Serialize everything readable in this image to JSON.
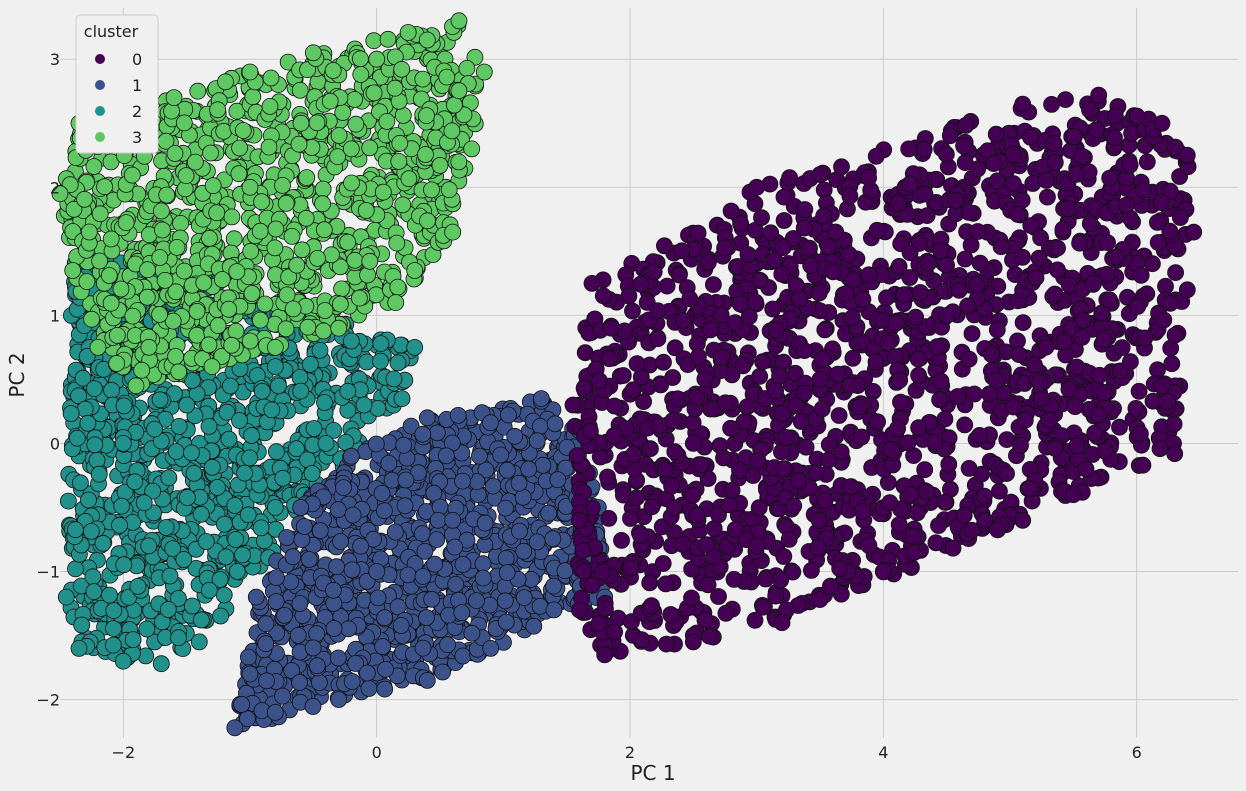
{
  "chart_data": {
    "type": "scatter",
    "title": "",
    "xlabel": "PC 1",
    "ylabel": "PC 2",
    "xlim": [
      -2.5,
      6.8
    ],
    "ylim": [
      -2.3,
      3.4
    ],
    "xticks": [
      -2,
      0,
      2,
      4,
      6
    ],
    "yticks": [
      -2,
      -1,
      0,
      1,
      2,
      3
    ],
    "grid": true,
    "legend": {
      "title": "cluster",
      "placement": "top-left"
    },
    "series": [
      {
        "name": "0",
        "color": "#440154",
        "region": {
          "x_range": [
            1.55,
            6.45
          ],
          "y_range": [
            -1.65,
            2.72
          ]
        },
        "sample_points": [
          [
            1.6,
            -1.3
          ],
          [
            1.8,
            -1.65
          ],
          [
            1.85,
            0.9
          ],
          [
            2.5,
            -1.5
          ],
          [
            3.0,
            2.0
          ],
          [
            3.5,
            2.1
          ],
          [
            4.2,
            2.3
          ],
          [
            5.1,
            2.65
          ],
          [
            5.7,
            2.72
          ],
          [
            6.2,
            2.5
          ],
          [
            6.4,
            2.25
          ],
          [
            6.45,
            1.65
          ],
          [
            6.4,
            1.2
          ],
          [
            6.2,
            0.45
          ],
          [
            6.3,
            -0.08
          ],
          [
            5.6,
            -0.2
          ],
          [
            5.5,
            -0.4
          ],
          [
            5.1,
            -0.6
          ],
          [
            4.8,
            -0.6
          ],
          [
            4.0,
            -1.0
          ],
          [
            3.2,
            -1.4
          ],
          [
            2.5,
            -1.55
          ],
          [
            1.6,
            -0.6
          ],
          [
            1.55,
            0.3
          ],
          [
            1.7,
            1.25
          ],
          [
            2.5,
            0.0
          ],
          [
            3.5,
            0.5
          ],
          [
            4.5,
            1.0
          ],
          [
            3.0,
            -0.8
          ]
        ]
      },
      {
        "name": "1",
        "color": "#3b528b",
        "region": {
          "x_range": [
            -1.15,
            1.8
          ],
          "y_range": [
            -2.22,
            0.35
          ]
        },
        "sample_points": [
          [
            -1.12,
            -2.22
          ],
          [
            -1.0,
            -1.8
          ],
          [
            -0.95,
            -1.2
          ],
          [
            -0.6,
            -0.5
          ],
          [
            -0.2,
            -0.1
          ],
          [
            0.4,
            0.2
          ],
          [
            1.3,
            0.35
          ],
          [
            1.6,
            0.1
          ],
          [
            1.75,
            -0.5
          ],
          [
            1.8,
            -1.2
          ],
          [
            1.4,
            -1.3
          ],
          [
            0.9,
            -1.6
          ],
          [
            0.4,
            -1.85
          ],
          [
            -0.3,
            -2.0
          ],
          [
            -0.8,
            -2.1
          ],
          [
            0.0,
            -1.0
          ],
          [
            0.6,
            -0.6
          ],
          [
            1.2,
            -0.2
          ]
        ]
      },
      {
        "name": "2",
        "color": "#21918c",
        "region": {
          "x_range": [
            -2.45,
            0.35
          ],
          "y_range": [
            -1.75,
            1.7
          ]
        },
        "sample_points": [
          [
            -2.4,
            1.65
          ],
          [
            -2.3,
            1.3
          ],
          [
            -2.1,
            1.22
          ],
          [
            -2.45,
            -1.2
          ],
          [
            -2.35,
            -1.6
          ],
          [
            -2.0,
            -1.7
          ],
          [
            -1.7,
            -1.72
          ],
          [
            -1.4,
            -1.55
          ],
          [
            -1.1,
            -1.0
          ],
          [
            -0.8,
            -0.5
          ],
          [
            -0.4,
            0.0
          ],
          [
            -0.1,
            0.3
          ],
          [
            0.2,
            0.35
          ],
          [
            0.3,
            0.75
          ],
          [
            -0.2,
            0.8
          ],
          [
            -0.8,
            0.6
          ],
          [
            -1.5,
            0.3
          ],
          [
            -2.0,
            0.0
          ],
          [
            -1.8,
            -0.8
          ]
        ]
      },
      {
        "name": "3",
        "color": "#5ec962",
        "region": {
          "x_range": [
            -2.5,
            0.9
          ],
          "y_range": [
            0.4,
            3.3
          ]
        },
        "sample_points": [
          [
            -2.5,
            1.95
          ],
          [
            -2.4,
            1.35
          ],
          [
            -2.35,
            2.5
          ],
          [
            -2.0,
            2.55
          ],
          [
            -1.6,
            2.7
          ],
          [
            -1.0,
            2.9
          ],
          [
            -0.5,
            3.05
          ],
          [
            0.0,
            3.0
          ],
          [
            0.4,
            3.15
          ],
          [
            0.65,
            3.3
          ],
          [
            0.85,
            2.9
          ],
          [
            0.75,
            2.3
          ],
          [
            0.6,
            1.65
          ],
          [
            0.3,
            1.35
          ],
          [
            0.15,
            1.1
          ],
          [
            -0.3,
            0.9
          ],
          [
            -0.8,
            0.75
          ],
          [
            -1.3,
            0.6
          ],
          [
            -1.9,
            0.45
          ],
          [
            -2.2,
            0.75
          ],
          [
            -1.0,
            2.0
          ],
          [
            -0.2,
            2.3
          ]
        ]
      }
    ]
  }
}
